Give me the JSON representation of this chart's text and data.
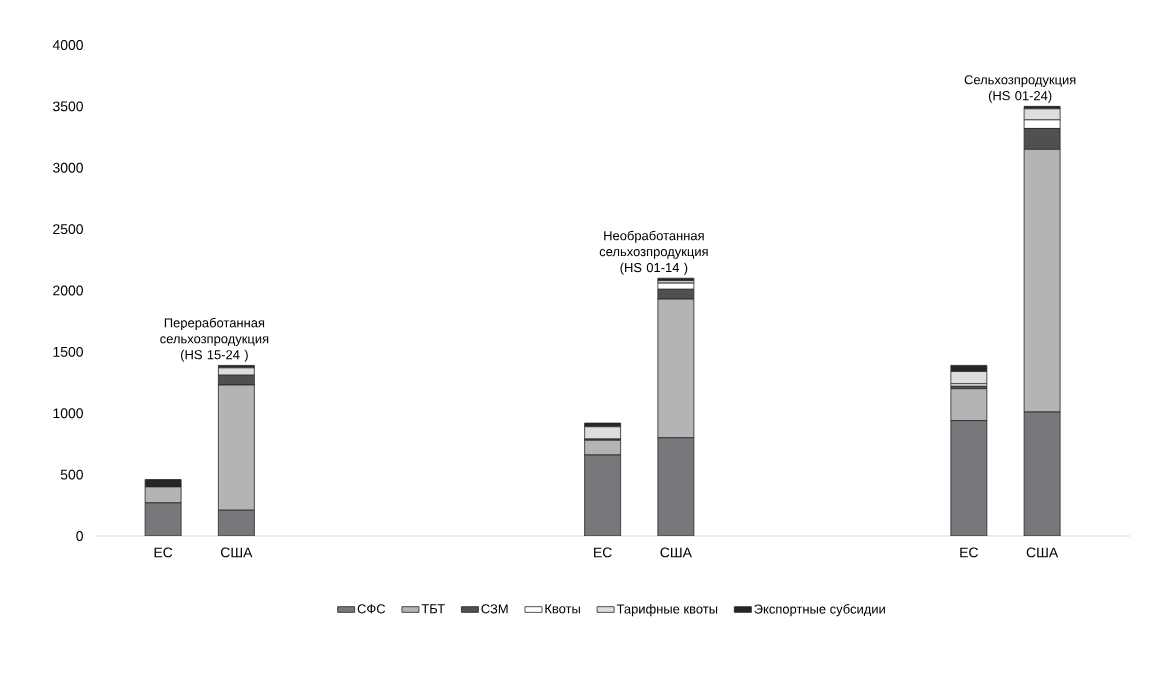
{
  "chart_data": {
    "type": "bar",
    "stacked": true,
    "categories": [
      "ЕС",
      "США",
      null,
      null,
      null,
      null,
      "ЕС",
      "США",
      null,
      null,
      null,
      "ЕС",
      "США"
    ],
    "series": [
      {
        "name": "СФС",
        "color": "#77787b",
        "values": [
          270,
          210,
          null,
          null,
          null,
          null,
          660,
          800,
          null,
          null,
          null,
          940,
          1010
        ]
      },
      {
        "name": "ТБТ",
        "color": "#b4b4b4",
        "values": [
          130,
          1020,
          null,
          null,
          null,
          null,
          120,
          1130,
          null,
          null,
          null,
          260,
          2140
        ]
      },
      {
        "name": "СЗМ",
        "color": "#505050",
        "values": [
          0,
          80,
          null,
          null,
          null,
          null,
          10,
          80,
          null,
          null,
          null,
          20,
          170
        ]
      },
      {
        "name": "Квоты",
        "color": "#ffffff",
        "values": [
          0,
          null,
          null,
          null,
          null,
          null,
          null,
          50,
          null,
          null,
          null,
          20,
          70
        ]
      },
      {
        "name": "Тарифные квоты",
        "color": "#dcdddf",
        "values": [
          0,
          60,
          null,
          null,
          null,
          null,
          100,
          20,
          null,
          null,
          null,
          100,
          90
        ]
      },
      {
        "name": "Экспортные субсидии",
        "color": "#262626",
        "values": [
          60,
          20,
          null,
          null,
          null,
          null,
          30,
          20,
          null,
          null,
          null,
          50,
          20
        ]
      }
    ],
    "ylim": [
      0,
      4000
    ],
    "yticks": [
      0,
      500,
      1000,
      1500,
      2000,
      2500,
      3000,
      3500,
      4000
    ],
    "legend": "bottom",
    "annotations": [
      "Переработанная сельхозпродукция (HS 15-24 )",
      "Необработанная сельхозпродукция (HS 01-14 )",
      "Сельхозпродукция (HS 01-24)"
    ]
  }
}
